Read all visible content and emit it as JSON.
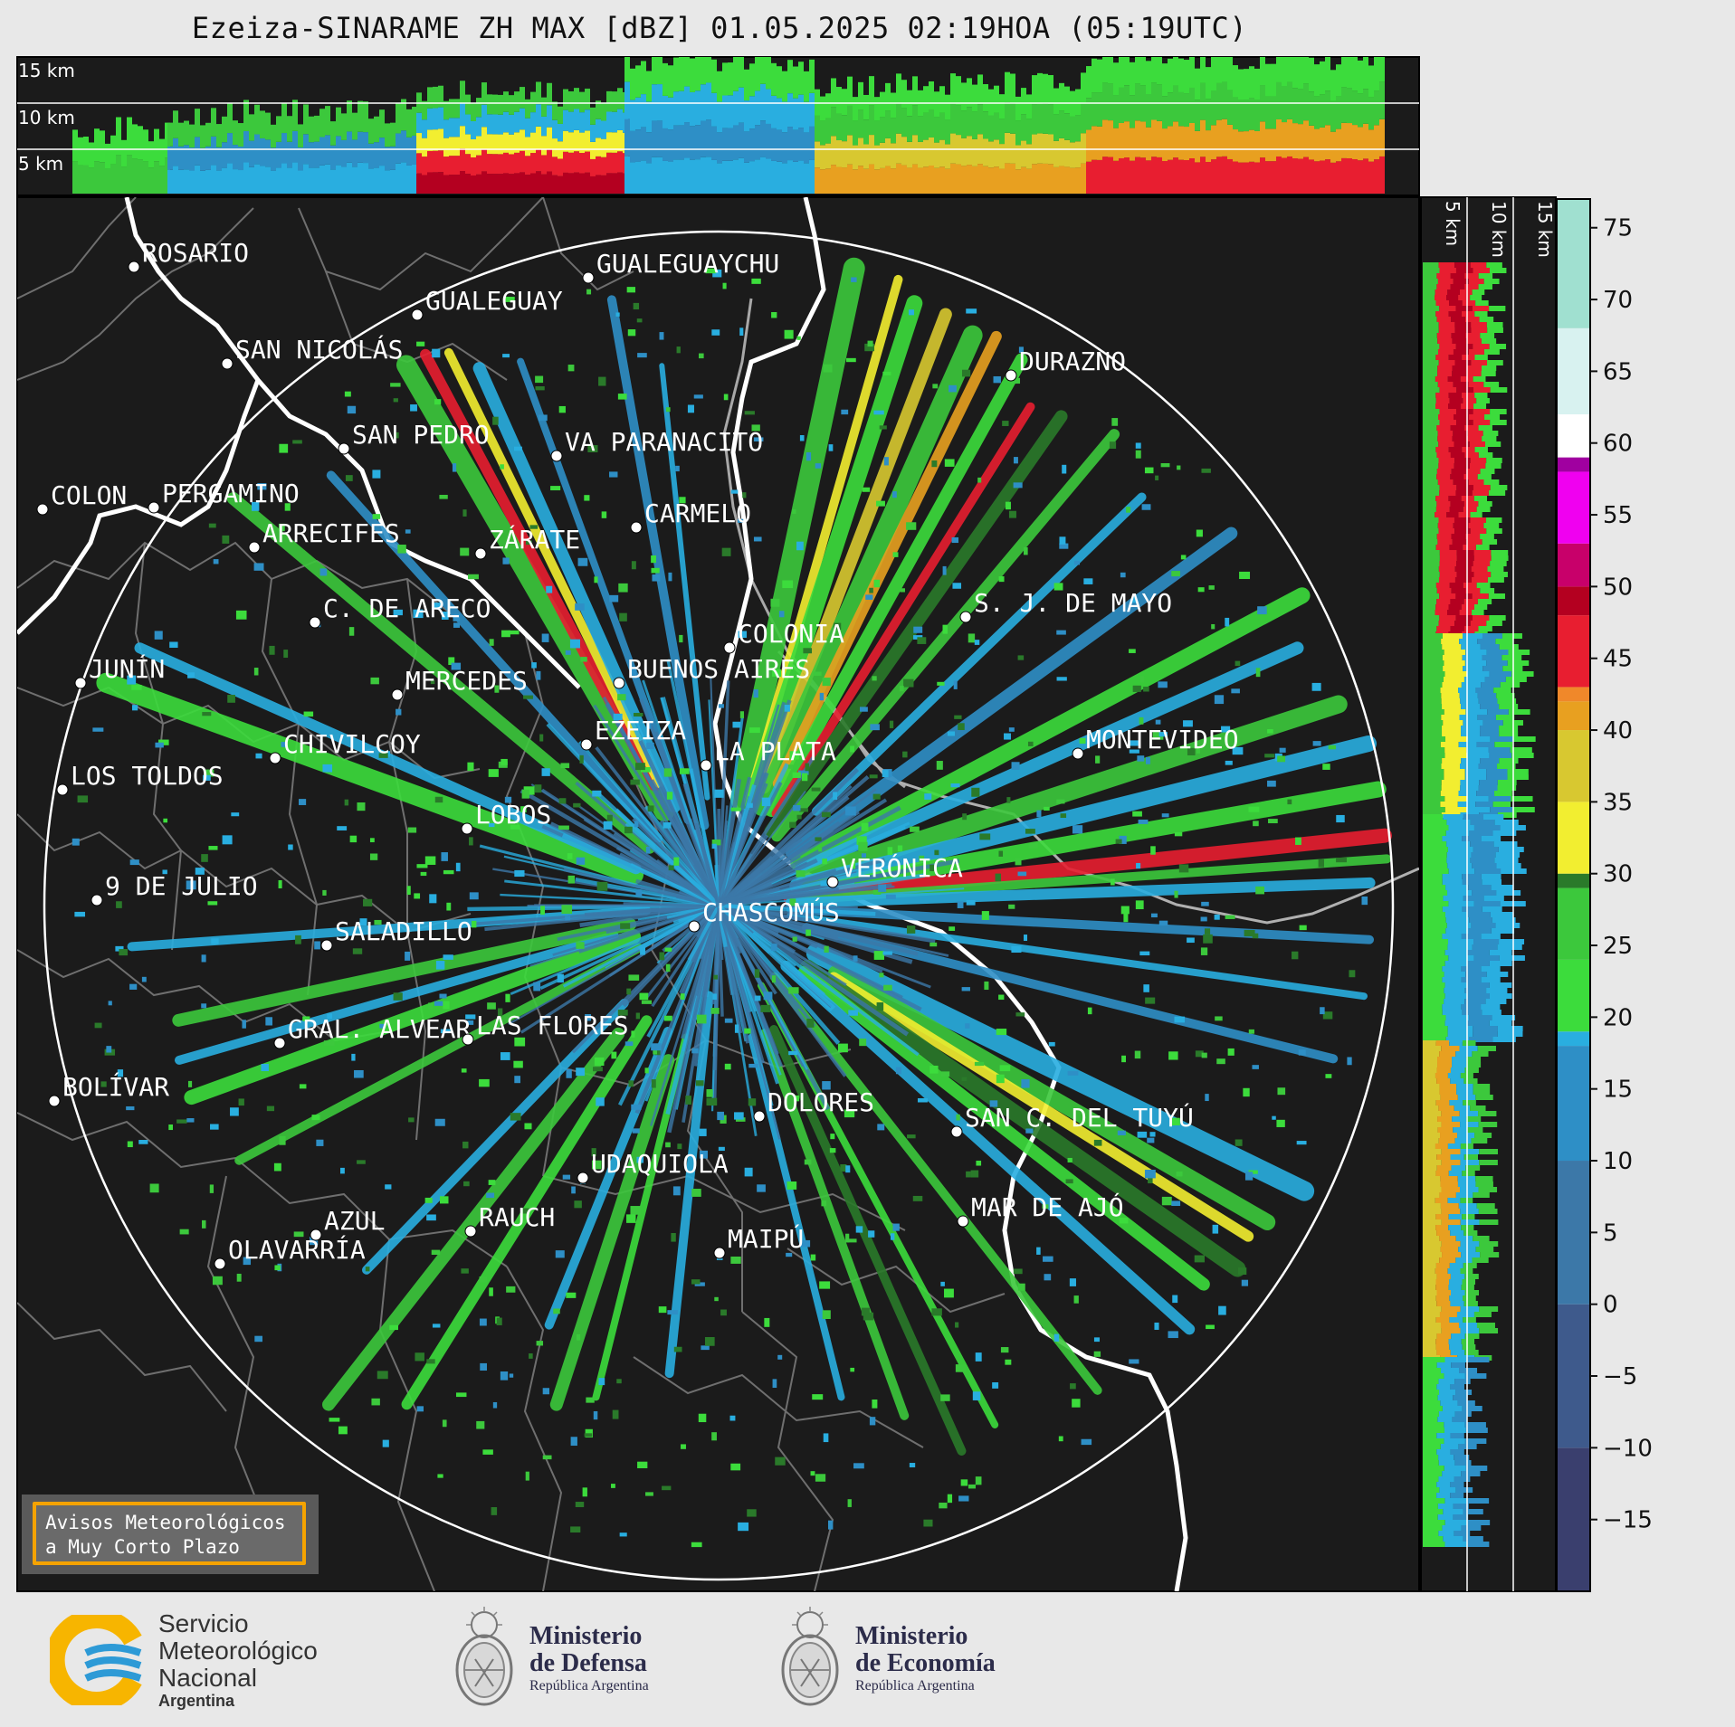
{
  "title": "Ezeiza-SINARAME ZH MAX [dBZ] 01.05.2025 02:19HOA (05:19UTC)",
  "top_panel_altitudes": [
    "15 km",
    "10 km",
    "5 km"
  ],
  "right_panel_altitudes": [
    "5 km",
    "10 km",
    "15 km"
  ],
  "colorbar": {
    "ticks": [
      "75",
      "70",
      "65",
      "60",
      "55",
      "50",
      "45",
      "40",
      "35",
      "30",
      "25",
      "20",
      "15",
      "10",
      "5",
      "0",
      "−5",
      "−10",
      "−15"
    ],
    "tick_values": [
      75,
      70,
      65,
      60,
      55,
      50,
      45,
      40,
      35,
      30,
      25,
      20,
      15,
      10,
      5,
      0,
      -5,
      -10,
      -15
    ],
    "range": [
      -20,
      77
    ],
    "stops": [
      {
        "v": -20,
        "color": "#3a3f6e"
      },
      {
        "v": -10,
        "color": "#3e5a8c"
      },
      {
        "v": 0,
        "color": "#3c78a8"
      },
      {
        "v": 10,
        "color": "#2e8fc6"
      },
      {
        "v": 18,
        "color": "#29aee0"
      },
      {
        "v": 19,
        "color": "#3cdc3c"
      },
      {
        "v": 24,
        "color": "#3cc83c"
      },
      {
        "v": 29,
        "color": "#2a7a2a"
      },
      {
        "v": 30,
        "color": "#f2ee30"
      },
      {
        "v": 35,
        "color": "#d8c830"
      },
      {
        "v": 40,
        "color": "#e8a020"
      },
      {
        "v": 42,
        "color": "#f0882a"
      },
      {
        "v": 43,
        "color": "#e81e30"
      },
      {
        "v": 48,
        "color": "#b40020"
      },
      {
        "v": 50,
        "color": "#c8006a"
      },
      {
        "v": 53,
        "color": "#f000f0"
      },
      {
        "v": 58,
        "color": "#a000a0"
      },
      {
        "v": 59,
        "color": "#ffffff"
      },
      {
        "v": 62,
        "color": "#d8f2f0"
      },
      {
        "v": 68,
        "color": "#a0e0d0"
      },
      {
        "v": 77,
        "color": "#7adcb8"
      }
    ]
  },
  "cities": [
    {
      "name": "ROSARIO",
      "lx": 148,
      "ly": 295
    },
    {
      "name": "GUALEGUAYCHU",
      "lx": 650,
      "ly": 307
    },
    {
      "name": "GUALEGUAY",
      "lx": 461,
      "ly": 348
    },
    {
      "name": "SAN NICOLÁS",
      "lx": 251,
      "ly": 402
    },
    {
      "name": "DURAZNO",
      "lx": 1117,
      "ly": 415
    },
    {
      "name": "SAN PEDRO",
      "lx": 380,
      "ly": 496
    },
    {
      "name": "VA PARANACITO",
      "lx": 615,
      "ly": 504
    },
    {
      "name": "COLON",
      "lx": 47,
      "ly": 563
    },
    {
      "name": "PERGAMINO",
      "lx": 170,
      "ly": 561
    },
    {
      "name": "CARMELO",
      "lx": 703,
      "ly": 583
    },
    {
      "name": "ARRECIFES",
      "lx": 281,
      "ly": 605
    },
    {
      "name": "ZÁRATE",
      "lx": 531,
      "ly": 612
    },
    {
      "name": "S. J. DE MAYO",
      "lx": 1067,
      "ly": 682
    },
    {
      "name": "C. DE ARECO",
      "lx": 348,
      "ly": 688
    },
    {
      "name": "COLONIA",
      "lx": 806,
      "ly": 716
    },
    {
      "name": "BUENOS AIRES",
      "lx": 684,
      "ly": 755
    },
    {
      "name": "JUNÍN",
      "lx": 89,
      "ly": 755
    },
    {
      "name": "MERCEDES",
      "lx": 439,
      "ly": 768
    },
    {
      "name": "EZEIZA",
      "lx": 648,
      "ly": 823
    },
    {
      "name": "MONTEVIDEO",
      "lx": 1191,
      "ly": 833
    },
    {
      "name": "CHIVILCOY",
      "lx": 304,
      "ly": 838
    },
    {
      "name": "LA PLATA",
      "lx": 780,
      "ly": 846
    },
    {
      "name": "LOS TOLDOS",
      "lx": 69,
      "ly": 873
    },
    {
      "name": "LOBOS",
      "lx": 516,
      "ly": 916
    },
    {
      "name": "VERÓNICA",
      "lx": 920,
      "ly": 975
    },
    {
      "name": "9 DE JULIO",
      "lx": 107,
      "ly": 995
    },
    {
      "name": "CHASCOMÚS",
      "lx": 767,
      "ly": 1024
    },
    {
      "name": "SALADILLO",
      "lx": 361,
      "ly": 1045
    },
    {
      "name": "GRAL. ALVEAR",
      "lx": 309,
      "ly": 1153
    },
    {
      "name": "LAS FLORES",
      "lx": 517,
      "ly": 1149
    },
    {
      "name": "BOLÍVAR",
      "lx": 60,
      "ly": 1217
    },
    {
      "name": "DOLORES",
      "lx": 839,
      "ly": 1234
    },
    {
      "name": "SAN C. DEL TUYÚ",
      "lx": 1057,
      "ly": 1251
    },
    {
      "name": "UDAQUIOLA",
      "lx": 644,
      "ly": 1302
    },
    {
      "name": "MAR DE AJÓ",
      "lx": 1064,
      "ly": 1350
    },
    {
      "name": "AZUL",
      "lx": 349,
      "ly": 1365
    },
    {
      "name": "RAUCH",
      "lx": 520,
      "ly": 1361
    },
    {
      "name": "MAIPÚ",
      "lx": 795,
      "ly": 1385
    },
    {
      "name": "OLAVARRÍA",
      "lx": 243,
      "ly": 1397
    }
  ],
  "avisos": {
    "line1": "Avisos Meteorológicos",
    "line2": "a Muy Corto Plazo"
  },
  "logos": {
    "smn": {
      "line1": "Servicio",
      "line2": "Meteorológico",
      "line3": "Nacional",
      "line4": "Argentina"
    },
    "defensa": {
      "line1": "Ministerio",
      "line2": "de Defensa",
      "line3": "República Argentina"
    },
    "economia": {
      "line1": "Ministerio",
      "line2": "de Economía",
      "line3": "República Argentina"
    },
    "colors": {
      "smn_yellow": "#f7b500",
      "smn_blue": "#2d9ad6",
      "panel_bg": "#1b1b1b"
    }
  }
}
